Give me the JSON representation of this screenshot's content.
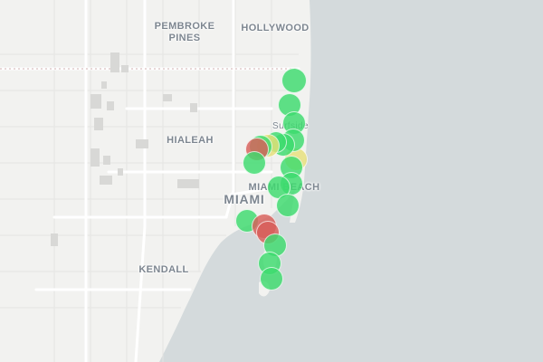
{
  "map": {
    "colors": {
      "land": "#f2f2f0",
      "water": "#d4dadc",
      "road": "#ffffff",
      "road_minor": "#e6e6e4",
      "label": "#7d8690",
      "marker_good": "#3ddc6e",
      "marker_moderate": "#e8e07a",
      "marker_bad": "#d95f5a"
    },
    "labels": {
      "pembroke_pines": "PEMBROKE\nPINES",
      "hollywood": "HOLLYWOOD",
      "hialeah": "HIALEAH",
      "miami": "MIAMI",
      "miami_beach": "MIAMI BEACH",
      "surfside": "Surfside",
      "kendall": "KENDALL"
    },
    "marker_status_colors": [
      "marker_good",
      "marker_moderate",
      "marker_bad"
    ]
  }
}
